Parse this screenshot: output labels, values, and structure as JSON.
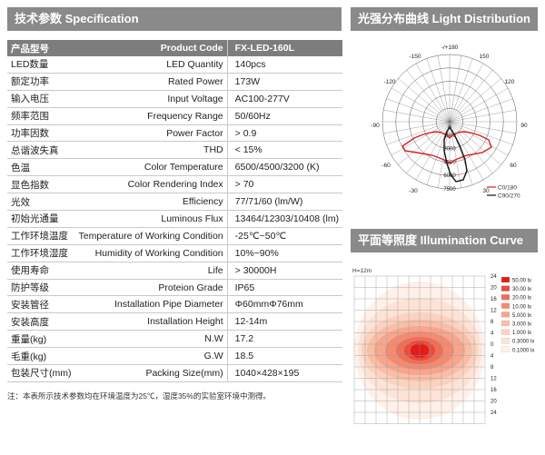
{
  "spec": {
    "title_cn": "技术参数",
    "title_en": "Specification",
    "header": {
      "cn": "产品型号",
      "en": "Product Code",
      "value": "FX-LED-160L"
    },
    "rows": [
      {
        "cn": "LED数量",
        "en": "LED Quantity",
        "value": "140pcs"
      },
      {
        "cn": "额定功率",
        "en": "Rated Power",
        "value": "173W"
      },
      {
        "cn": "输入电压",
        "en": "Input Voltage",
        "value": "AC100-277V"
      },
      {
        "cn": "频率范围",
        "en": "Frequency Range",
        "value": "50/60Hz"
      },
      {
        "cn": "功率因数",
        "en": "Power Factor",
        "value": "> 0.9"
      },
      {
        "cn": "总谐波失真",
        "en": "THD",
        "value": "< 15%"
      },
      {
        "cn": "色温",
        "en": "Color Temperature",
        "value": "6500/4500/3200 (K)"
      },
      {
        "cn": "显色指数",
        "en": "Color Rendering Index",
        "value": "> 70"
      },
      {
        "cn": "光效",
        "en": "Efficiency",
        "value": "77/71/60 (lm/W)"
      },
      {
        "cn": "初始光通量",
        "en": "Luminous Flux",
        "value": "13464/12303/10408 (lm)"
      },
      {
        "cn": "工作环境温度",
        "en": "Temperature of Working Condition",
        "value": "-25℃~50℃"
      },
      {
        "cn": "工作环境湿度",
        "en": "Humidity of Working Condition",
        "value": "10%~90%"
      },
      {
        "cn": "使用寿命",
        "en": "Life",
        "value": "> 30000H"
      },
      {
        "cn": "防护等级",
        "en": "Proteion Grade",
        "value": "IP65"
      },
      {
        "cn": "安装管径",
        "en": "Installation Pipe Diameter",
        "value": "Φ60mmΦ76mm"
      },
      {
        "cn": "安装高度",
        "en": "Installation Height",
        "value": "12-14m"
      },
      {
        "cn": "重量(kg)",
        "en": "N.W",
        "value": "17.2"
      },
      {
        "cn": "毛重(kg)",
        "en": "G.W",
        "value": "18.5"
      },
      {
        "cn": "包装尺寸(mm)",
        "en": "Packing Size(mm)",
        "value": "1040×428×195"
      }
    ],
    "note": "注：本表所示技术参数均在环境温度为25℃，湿度35%的实验室环境中测得。"
  },
  "light_distribution": {
    "title_cn": "光强分布曲线",
    "title_en": "Light Distribution",
    "angle_labels": [
      "-/+180",
      "-150",
      "150",
      "-120",
      "120",
      "-90",
      "90",
      "-60",
      "60",
      "-30",
      "30",
      "0"
    ],
    "radial_labels": [
      "1500",
      "3000",
      "4500",
      "6000",
      "7500"
    ],
    "legend": [
      {
        "label": "C0/180",
        "color": "#d62020"
      },
      {
        "label": "C90/270",
        "color": "#111111"
      }
    ]
  },
  "illumination": {
    "title_cn": "平面等照度",
    "title_en": "Illumination Curve",
    "height_label": "H=12m",
    "y_labels": [
      "24",
      "20",
      "16",
      "12",
      "8",
      "4",
      "0",
      "4",
      "8",
      "12",
      "16",
      "20",
      "24"
    ],
    "x_labels": [
      "19.20",
      "9.60",
      "0.00",
      "9.60",
      "19.20"
    ],
    "legend": [
      {
        "label": "50.00 lx",
        "color": "#e21b1b"
      },
      {
        "label": "30.00 lx",
        "color": "#ea4a3c"
      },
      {
        "label": "20.00 lx",
        "color": "#ef6e5a"
      },
      {
        "label": "10.00 lx",
        "color": "#f38b73"
      },
      {
        "label": "5.000 lx",
        "color": "#f6a68d"
      },
      {
        "label": "3.000 lx",
        "color": "#f9bea8"
      },
      {
        "label": "1.000 lx",
        "color": "#fbd2c0"
      },
      {
        "label": "0.3000 lx",
        "color": "#fde2d6"
      },
      {
        "label": "0.1000 lx",
        "color": "#fff0e9"
      }
    ]
  }
}
